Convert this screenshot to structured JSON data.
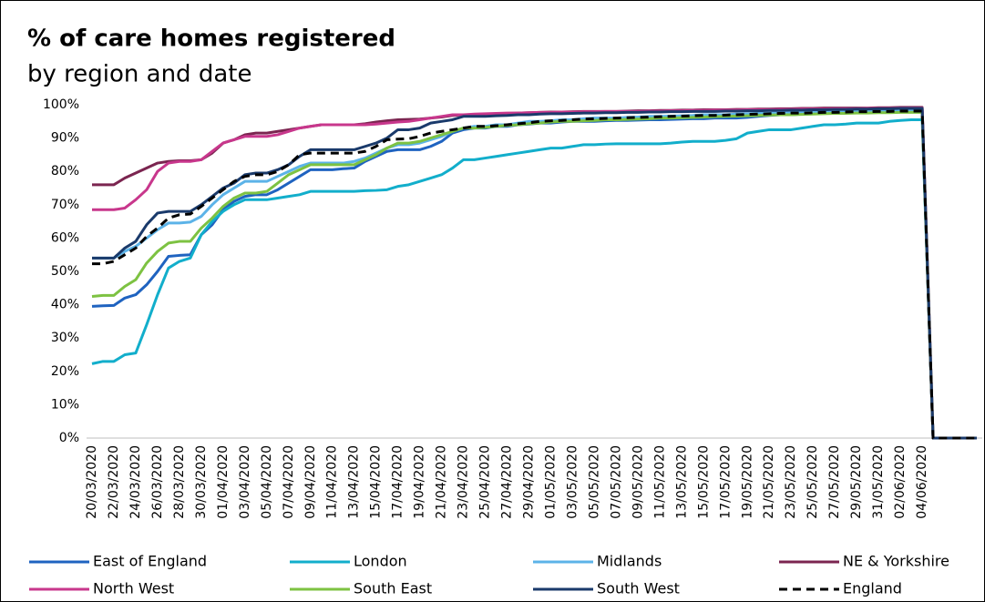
{
  "chart_data": {
    "type": "line",
    "title": "% of care homes registered",
    "subtitle": "by region and date",
    "categories": [
      "20/03/2020",
      null,
      "22/03/2020",
      null,
      "24/03/2020",
      null,
      "26/03/2020",
      null,
      "28/03/2020",
      null,
      "30/03/2020",
      null,
      "01/04/2020",
      null,
      "03/04/2020",
      null,
      "05/04/2020",
      null,
      "07/04/2020",
      null,
      "09/04/2020",
      null,
      "11/04/2020",
      null,
      "13/04/2020",
      null,
      "15/04/2020",
      null,
      "17/04/2020",
      null,
      "19/04/2020",
      null,
      "21/04/2020",
      null,
      "23/04/2020",
      null,
      "25/04/2020",
      null,
      "27/04/2020",
      null,
      "29/04/2020",
      null,
      "01/05/2020",
      null,
      "03/05/2020",
      null,
      "05/05/2020",
      null,
      "07/05/2020",
      null,
      "09/05/2020",
      null,
      "11/05/2020",
      null,
      "13/05/2020",
      null,
      "15/05/2020",
      null,
      "17/05/2020",
      null,
      "19/05/2020",
      null,
      "21/05/2020",
      null,
      "23/05/2020",
      null,
      "25/05/2020",
      null,
      "27/05/2020",
      null,
      "29/05/2020",
      null,
      "31/05/2020",
      null,
      "02/06/2020",
      null,
      "04/06/2020",
      null,
      null,
      null,
      null,
      null
    ],
    "ylim": [
      0,
      100
    ],
    "yticks": [
      {
        "value": 0,
        "label": "0%"
      },
      {
        "value": 10,
        "label": "10%"
      },
      {
        "value": 20,
        "label": "20%"
      },
      {
        "value": 30,
        "label": "30%"
      },
      {
        "value": 40,
        "label": "40%"
      },
      {
        "value": 50,
        "label": "50%"
      },
      {
        "value": 60,
        "label": "60%"
      },
      {
        "value": 70,
        "label": "70%"
      },
      {
        "value": 80,
        "label": "80%"
      },
      {
        "value": 90,
        "label": "90%"
      },
      {
        "value": 100,
        "label": "100%"
      }
    ],
    "grid": false,
    "series": [
      {
        "name": "East of England",
        "color": "#1f63c0",
        "values": [
          39.5,
          39.7,
          39.8,
          42,
          43,
          46,
          50,
          54.5,
          54.8,
          55,
          61,
          64,
          68.5,
          71,
          72.5,
          73,
          73,
          74.5,
          76.5,
          78.5,
          80.5,
          80.5,
          80.5,
          80.8,
          81,
          83,
          84.5,
          86,
          86.5,
          86.5,
          86.5,
          87.5,
          89,
          91.5,
          92.5,
          93,
          93,
          93.5,
          93.5,
          94,
          94.2,
          94.5,
          94.5,
          94.8,
          95,
          95,
          95,
          95.2,
          95.3,
          95.3,
          95.4,
          95.5,
          95.5,
          95.6,
          95.7,
          95.8,
          95.8,
          96,
          96,
          96,
          96.2,
          96.5,
          96.8,
          97,
          97,
          97.2,
          97.3,
          97.5,
          97.5,
          97.6,
          97.7,
          97.8,
          97.8,
          97.9,
          98,
          98,
          98,
          0,
          0,
          0,
          0,
          0
        ]
      },
      {
        "name": "London",
        "color": "#12aecb",
        "values": [
          22.3,
          23,
          23,
          25,
          25.5,
          34,
          43,
          51,
          53,
          54,
          61,
          65,
          68,
          70,
          71.5,
          71.5,
          71.5,
          72,
          72.5,
          73,
          74,
          74,
          74,
          74,
          74,
          74.2,
          74.3,
          74.5,
          75.5,
          76,
          77,
          78,
          79,
          81,
          83.5,
          83.5,
          84,
          84.5,
          85,
          85.5,
          86,
          86.5,
          87,
          87,
          87.5,
          88,
          88,
          88.2,
          88.3,
          88.3,
          88.3,
          88.3,
          88.3,
          88.5,
          88.8,
          89,
          89,
          89,
          89.3,
          89.8,
          91.5,
          92,
          92.5,
          92.5,
          92.5,
          93,
          93.5,
          94,
          94,
          94.2,
          94.5,
          94.5,
          94.5,
          95,
          95.3,
          95.5,
          95.5,
          0,
          0,
          0,
          0,
          0
        ]
      },
      {
        "name": "Midlands",
        "color": "#5cb3e8",
        "values": [
          54,
          54,
          54,
          56,
          57.5,
          60,
          62.5,
          64.5,
          64.5,
          64.8,
          66.5,
          70,
          73,
          75,
          77,
          77,
          77,
          78.5,
          80,
          81.5,
          82.5,
          82.5,
          82.5,
          82.5,
          83,
          84,
          85.5,
          87,
          88,
          88,
          88.5,
          89.5,
          90.5,
          92,
          93,
          93.5,
          93.5,
          94,
          94,
          94.5,
          95,
          95,
          95.2,
          95.5,
          95.5,
          95.8,
          96,
          96,
          96,
          96.2,
          96.3,
          96.5,
          96.5,
          96.6,
          96.7,
          96.8,
          97,
          97,
          97,
          97.2,
          97.3,
          97.4,
          97.5,
          97.6,
          97.7,
          97.8,
          97.9,
          98,
          98,
          98.1,
          98.2,
          98.3,
          98.3,
          98.4,
          98.5,
          98.5,
          98.5,
          0,
          0,
          0,
          0,
          0
        ]
      },
      {
        "name": "NE & Yorkshire",
        "color": "#7b2550",
        "values": [
          76,
          76,
          76,
          78,
          79.5,
          81,
          82.5,
          83,
          83.2,
          83.2,
          83.5,
          85.5,
          88.5,
          89.5,
          91,
          91.5,
          91.5,
          92,
          92.5,
          93,
          93.5,
          94,
          94,
          94,
          94,
          94.3,
          94.8,
          95.2,
          95.5,
          95.6,
          95.7,
          96,
          96.3,
          96.8,
          97,
          97,
          97.2,
          97.3,
          97.4,
          97.5,
          97.6,
          97.7,
          97.8,
          97.8,
          97.9,
          98,
          98,
          98,
          98,
          98.1,
          98.2,
          98.2,
          98.3,
          98.3,
          98.4,
          98.4,
          98.5,
          98.5,
          98.5,
          98.6,
          98.6,
          98.7,
          98.7,
          98.8,
          98.8,
          98.9,
          98.9,
          99,
          99,
          99,
          99,
          99,
          99.1,
          99.1,
          99.2,
          99.2,
          99.2,
          0,
          0,
          0,
          0,
          0
        ]
      },
      {
        "name": "North West",
        "color": "#c8378c",
        "values": [
          68.5,
          68.5,
          68.5,
          69,
          71.5,
          74.5,
          80,
          82.5,
          83,
          83,
          83.5,
          86,
          88.5,
          89.5,
          90.5,
          90.5,
          90.5,
          91,
          92,
          93,
          93.5,
          94,
          94,
          94,
          94,
          94,
          94.2,
          94.5,
          94.8,
          95,
          95.5,
          96,
          96.5,
          97,
          97,
          97.2,
          97.3,
          97.4,
          97.5,
          97.5,
          97.6,
          97.7,
          97.7,
          97.8,
          97.8,
          97.9,
          97.9,
          98,
          98,
          98,
          98,
          98.1,
          98.1,
          98.2,
          98.2,
          98.3,
          98.3,
          98.4,
          98.4,
          98.4,
          98.5,
          98.5,
          98.5,
          98.6,
          98.6,
          98.7,
          98.7,
          98.7,
          98.8,
          98.8,
          98.8,
          98.9,
          98.9,
          98.9,
          99,
          99,
          99,
          0,
          0,
          0,
          0,
          0
        ]
      },
      {
        "name": "South East",
        "color": "#7dc242",
        "values": [
          42.5,
          42.8,
          42.8,
          45.5,
          47.5,
          52.5,
          56,
          58.5,
          59,
          59,
          63,
          66,
          69.5,
          72,
          73.5,
          73.5,
          74,
          76.5,
          79,
          80.5,
          82,
          82,
          82,
          82,
          82,
          83.5,
          85,
          87,
          88.5,
          88.5,
          89,
          90,
          91,
          92,
          93,
          93,
          93.2,
          93.5,
          93.8,
          94,
          94.3,
          94.5,
          94.8,
          95,
          95,
          95.2,
          95.3,
          95.5,
          95.5,
          95.6,
          95.7,
          95.8,
          96,
          96,
          96.1,
          96.2,
          96.3,
          96.4,
          96.5,
          96.6,
          96.7,
          96.8,
          96.9,
          97,
          97,
          97.1,
          97.2,
          97.3,
          97.4,
          97.4,
          97.5,
          97.5,
          97.6,
          97.6,
          97.7,
          97.7,
          97.7,
          0,
          0,
          0,
          0,
          0
        ]
      },
      {
        "name": "South West",
        "color": "#1a3a6b",
        "values": [
          54,
          54,
          54,
          57,
          59,
          64,
          67.5,
          68,
          68,
          68,
          70,
          72.5,
          75,
          76.5,
          79,
          79.5,
          79.5,
          80.5,
          82,
          84.5,
          86.5,
          86.5,
          86.5,
          86.5,
          86.5,
          87.5,
          88.5,
          90,
          92.5,
          92.5,
          93,
          94.5,
          95,
          95.5,
          96.5,
          96.5,
          96.5,
          96.7,
          96.8,
          97,
          97,
          97.2,
          97.3,
          97.3,
          97.4,
          97.5,
          97.5,
          97.6,
          97.6,
          97.7,
          97.7,
          97.8,
          97.8,
          97.9,
          97.9,
          98,
          98,
          98,
          98.1,
          98.1,
          98.2,
          98.2,
          98.3,
          98.3,
          98.4,
          98.4,
          98.5,
          98.5,
          98.6,
          98.6,
          98.7,
          98.7,
          98.8,
          98.8,
          98.9,
          98.9,
          98.9,
          0,
          0,
          0,
          0,
          0
        ]
      },
      {
        "name": "England",
        "color": "#000000",
        "style": "dashed",
        "values": [
          52.3,
          52.3,
          53,
          55,
          57,
          60.5,
          63,
          66,
          67,
          67.2,
          69.5,
          72,
          74.5,
          77,
          78.5,
          79,
          79,
          80,
          82,
          85,
          85.5,
          85.5,
          85.5,
          85.5,
          85.5,
          86,
          87.5,
          89.5,
          89.7,
          89.8,
          90.5,
          91.5,
          92,
          92.5,
          93,
          93.5,
          93.5,
          93.7,
          94,
          94.3,
          94.6,
          95,
          95.2,
          95.3,
          95.5,
          95.7,
          95.8,
          95.9,
          96,
          96.1,
          96.2,
          96.3,
          96.4,
          96.5,
          96.6,
          96.7,
          96.8,
          96.8,
          96.9,
          97,
          97.1,
          97.2,
          97.3,
          97.4,
          97.5,
          97.5,
          97.6,
          97.7,
          97.7,
          97.8,
          97.9,
          97.9,
          98,
          98,
          98.1,
          98.1,
          98.1,
          0,
          0,
          0,
          0,
          0
        ]
      }
    ]
  }
}
